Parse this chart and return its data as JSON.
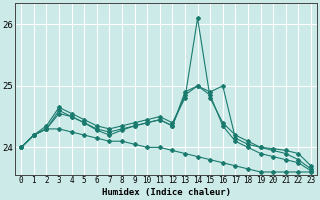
{
  "xlabel": "Humidex (Indice chaleur)",
  "bg_color": "#cceae8",
  "grid_color": "#ffffff",
  "line_color": "#1a7a6e",
  "xlim": [
    -0.5,
    23.5
  ],
  "ylim": [
    23.55,
    26.35
  ],
  "yticks": [
    24,
    25,
    26
  ],
  "xticks": [
    0,
    1,
    2,
    3,
    4,
    5,
    6,
    7,
    8,
    9,
    10,
    11,
    12,
    13,
    14,
    15,
    16,
    17,
    18,
    19,
    20,
    21,
    22,
    23
  ],
  "series": [
    [
      24.0,
      24.2,
      24.3,
      24.3,
      24.25,
      24.2,
      24.15,
      24.1,
      24.1,
      24.05,
      24.0,
      24.0,
      23.95,
      23.9,
      23.85,
      23.8,
      23.75,
      23.7,
      23.65,
      23.6,
      23.6,
      23.6,
      23.6,
      23.6
    ],
    [
      24.0,
      24.2,
      24.35,
      24.65,
      24.55,
      24.45,
      24.35,
      24.3,
      24.35,
      24.4,
      24.45,
      24.5,
      24.4,
      24.8,
      26.1,
      24.8,
      24.4,
      24.2,
      24.1,
      24.0,
      23.95,
      23.9,
      23.8,
      23.65
    ],
    [
      24.0,
      24.2,
      24.3,
      24.55,
      24.5,
      24.4,
      24.3,
      24.25,
      24.3,
      24.35,
      24.4,
      24.45,
      24.35,
      24.9,
      25.0,
      24.9,
      25.0,
      24.15,
      24.05,
      24.0,
      23.98,
      23.95,
      23.9,
      23.7
    ],
    [
      24.0,
      24.2,
      24.3,
      24.6,
      24.5,
      24.4,
      24.28,
      24.2,
      24.28,
      24.35,
      24.4,
      24.45,
      24.35,
      24.85,
      25.0,
      24.85,
      24.35,
      24.1,
      24.0,
      23.9,
      23.85,
      23.8,
      23.75,
      23.62
    ]
  ]
}
